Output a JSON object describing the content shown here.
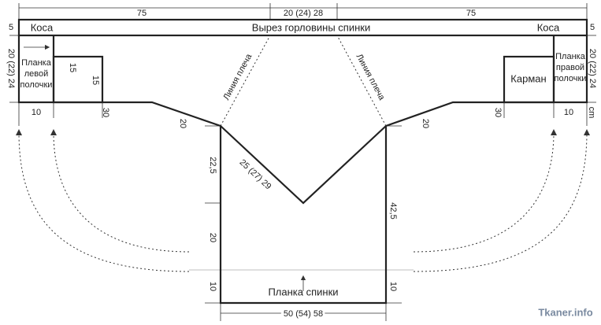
{
  "header": {
    "top_left": "75",
    "top_center": "20 (24) 28",
    "top_right": "75",
    "left_band": "5",
    "right_band": "5"
  },
  "band": {
    "left_label": "Коса",
    "center_label": "Вырез горловины спинки",
    "right_label": "Коса"
  },
  "left_front": {
    "height": "20 (22) 24",
    "placket": [
      "Планка",
      "левой",
      "полочки"
    ],
    "pocket_width": "15",
    "pocket_height": "15",
    "width_placket": "10",
    "width_body": "30",
    "shoulder": "20"
  },
  "right_front": {
    "height": "20 (22) 24",
    "placket": [
      "Планка",
      "правой",
      "полочки"
    ],
    "pocket": "Карман",
    "width_placket": "10",
    "width_body": "30",
    "shoulder": "20",
    "unit": "cm"
  },
  "shoulder_lines": [
    "Линия плеча",
    "Линия плеча"
  ],
  "back": {
    "armhole": "22,5",
    "neck": "25 (27) 29",
    "side": "20",
    "rib_left": "10",
    "total_height": "42,5",
    "rib_right": "10",
    "rib_label": "Планка спинки",
    "width": "50 (54) 58"
  },
  "watermark": "Tkaner.info"
}
